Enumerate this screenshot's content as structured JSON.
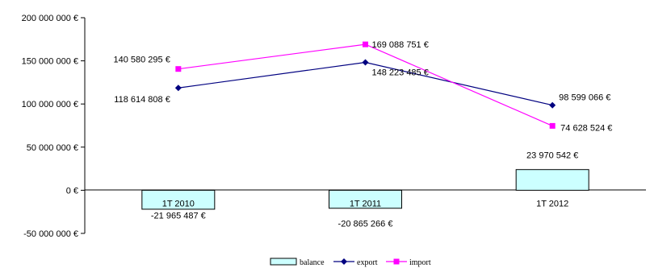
{
  "chart_data": {
    "type": "bar+line",
    "categories": [
      "1T 2010",
      "1T 2011",
      "1T 2012"
    ],
    "series": [
      {
        "name": "balance",
        "type": "bar",
        "values": [
          -21965487,
          -20865266,
          23970542
        ],
        "labels": [
          "-21 965 487 €",
          "-20 865 266 €",
          "23 970 542 €"
        ],
        "color": "#ccffff",
        "stroke": "#000000"
      },
      {
        "name": "export",
        "type": "line",
        "marker": "diamond",
        "values": [
          118614808,
          148223485,
          98599066
        ],
        "labels": [
          "118 614 808 €",
          "148 223 485 €",
          "98 599 066 €"
        ],
        "color": "#000080"
      },
      {
        "name": "import",
        "type": "line",
        "marker": "square",
        "values": [
          140580295,
          169088751,
          74628524
        ],
        "labels": [
          "140 580 295 €",
          "169 088 751 €",
          "74 628 524 €"
        ],
        "color": "#ff00ff"
      }
    ],
    "ylim": [
      -50000000,
      200000000
    ],
    "yticks": [
      200000000,
      150000000,
      100000000,
      50000000,
      0,
      -50000000
    ],
    "ytick_labels": [
      "200 000 000 €",
      "150 000 000 €",
      "100 000 000 €",
      "50 000 000 €",
      "0 €",
      "-50 000 000 €"
    ],
    "grid": false,
    "legend_position": "bottom"
  }
}
